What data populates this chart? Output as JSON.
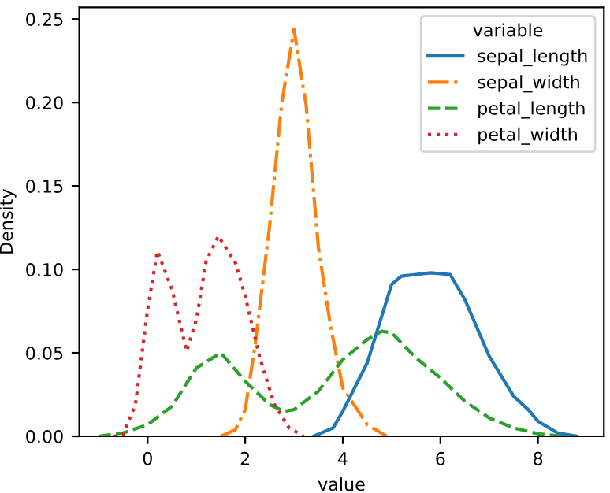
{
  "chart_data": {
    "type": "line",
    "xlabel": "value",
    "ylabel": "Density",
    "legend_title": "variable",
    "legend": "top right",
    "grid": false,
    "marker": "none",
    "xlim": [
      -1.4,
      9.35
    ],
    "ylim": [
      0,
      0.257
    ],
    "xticks": [
      0,
      2,
      4,
      6,
      8
    ],
    "yticks": [
      {
        "value": 0,
        "label": "0.00"
      },
      {
        "value": 0.05,
        "label": "0.05"
      },
      {
        "value": 0.1,
        "label": "0.10"
      },
      {
        "value": 0.15,
        "label": "0.15"
      },
      {
        "value": 0.2,
        "label": "0.20"
      },
      {
        "value": 0.25,
        "label": "0.25"
      }
    ],
    "series": [
      {
        "name": "sepal_length",
        "color": "#1f77b4",
        "line_style": "solid",
        "x": [
          3.4,
          3.8,
          4.0,
          4.5,
          5.0,
          5.2,
          5.5,
          5.8,
          6.2,
          6.5,
          7.0,
          7.5,
          7.8,
          8.0,
          8.4,
          8.8
        ],
        "values": [
          0,
          0.005,
          0.015,
          0.044,
          0.091,
          0.096,
          0.097,
          0.098,
          0.097,
          0.082,
          0.048,
          0.024,
          0.016,
          0.009,
          0.002,
          0
        ]
      },
      {
        "name": "sepal_width",
        "color": "#ff7f0e",
        "line_style": "dashdot",
        "x": [
          1.5,
          1.8,
          2.0,
          2.2,
          2.5,
          2.75,
          3.0,
          3.25,
          3.5,
          3.75,
          4.0,
          4.5,
          4.9
        ],
        "values": [
          0,
          0.004,
          0.016,
          0.054,
          0.126,
          0.2,
          0.244,
          0.198,
          0.113,
          0.066,
          0.029,
          0.007,
          0
        ]
      },
      {
        "name": "petal_length",
        "color": "#2ca02c",
        "line_style": "dashed",
        "x": [
          -1.0,
          -0.5,
          0,
          0.5,
          1.0,
          1.5,
          2.0,
          2.5,
          2.8,
          3.0,
          3.5,
          4.0,
          4.5,
          4.8,
          5.0,
          5.5,
          6.0,
          6.5,
          7.0,
          7.5,
          8.0,
          8.5
        ],
        "values": [
          0,
          0.002,
          0.007,
          0.018,
          0.041,
          0.05,
          0.033,
          0.019,
          0.015,
          0.016,
          0.027,
          0.046,
          0.058,
          0.063,
          0.062,
          0.047,
          0.035,
          0.021,
          0.011,
          0.005,
          0.0015,
          0
        ]
      },
      {
        "name": "petal_width",
        "color": "#d62728",
        "line_style": "dotted",
        "x": [
          -0.7,
          -0.5,
          -0.25,
          0,
          0.2,
          0.5,
          0.8,
          1.0,
          1.2,
          1.45,
          1.8,
          2.0,
          2.3,
          2.6,
          2.9,
          3.2
        ],
        "values": [
          0,
          0.001,
          0.019,
          0.076,
          0.111,
          0.088,
          0.051,
          0.07,
          0.105,
          0.12,
          0.104,
          0.084,
          0.047,
          0.019,
          0.005,
          0
        ]
      }
    ]
  }
}
